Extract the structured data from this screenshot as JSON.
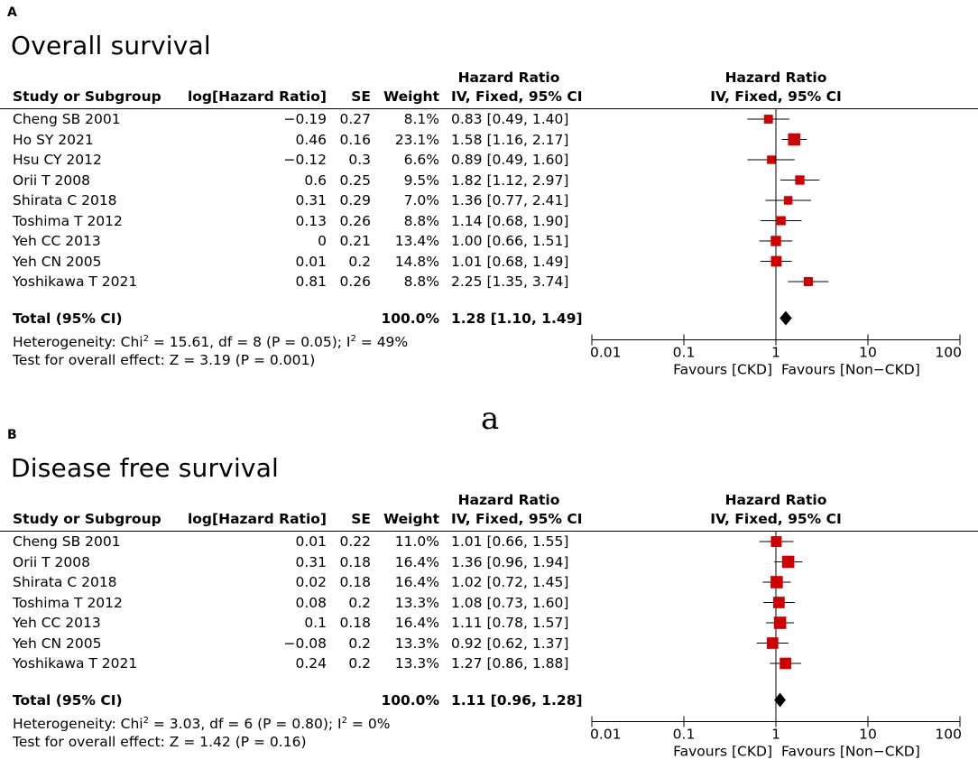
{
  "figure_separator": "a",
  "chart_data": [
    {
      "type": "forest",
      "panel_label": "A",
      "title": "Overall survival",
      "columns": {
        "study": "Study or Subgroup",
        "log_hr": "log[Hazard Ratio]",
        "se": "SE",
        "weight": "Weight",
        "hr_top": "Hazard Ratio",
        "hr_bottom": "IV, Fixed, 95% CI",
        "plot_top": "Hazard Ratio",
        "plot_bottom": "IV, Fixed, 95% CI"
      },
      "studies": [
        {
          "name": "Cheng SB 2001",
          "log_hr": "−0.19",
          "se": "0.27",
          "weight": "8.1%",
          "ci_text": "0.83 [0.49, 1.40]",
          "hr": 0.83,
          "lo": 0.49,
          "hi": 1.4,
          "w": 8.1
        },
        {
          "name": "Ho SY 2021",
          "log_hr": "0.46",
          "se": "0.16",
          "weight": "23.1%",
          "ci_text": "1.58 [1.16, 2.17]",
          "hr": 1.58,
          "lo": 1.16,
          "hi": 2.17,
          "w": 23.1
        },
        {
          "name": "Hsu CY 2012",
          "log_hr": "−0.12",
          "se": "0.3",
          "weight": "6.6%",
          "ci_text": "0.89 [0.49, 1.60]",
          "hr": 0.89,
          "lo": 0.49,
          "hi": 1.6,
          "w": 6.6
        },
        {
          "name": "Orii T 2008",
          "log_hr": "0.6",
          "se": "0.25",
          "weight": "9.5%",
          "ci_text": "1.82 [1.12, 2.97]",
          "hr": 1.82,
          "lo": 1.12,
          "hi": 2.97,
          "w": 9.5
        },
        {
          "name": "Shirata C 2018",
          "log_hr": "0.31",
          "se": "0.29",
          "weight": "7.0%",
          "ci_text": "1.36 [0.77, 2.41]",
          "hr": 1.36,
          "lo": 0.77,
          "hi": 2.41,
          "w": 7.0
        },
        {
          "name": "Toshima T 2012",
          "log_hr": "0.13",
          "se": "0.26",
          "weight": "8.8%",
          "ci_text": "1.14 [0.68, 1.90]",
          "hr": 1.14,
          "lo": 0.68,
          "hi": 1.9,
          "w": 8.8
        },
        {
          "name": "Yeh CC 2013",
          "log_hr": "0",
          "se": "0.21",
          "weight": "13.4%",
          "ci_text": "1.00 [0.66, 1.51]",
          "hr": 1.0,
          "lo": 0.66,
          "hi": 1.51,
          "w": 13.4
        },
        {
          "name": "Yeh CN 2005",
          "log_hr": "0.01",
          "se": "0.2",
          "weight": "14.8%",
          "ci_text": "1.01 [0.68, 1.49]",
          "hr": 1.01,
          "lo": 0.68,
          "hi": 1.49,
          "w": 14.8
        },
        {
          "name": "Yoshikawa T 2021",
          "log_hr": "0.81",
          "se": "0.26",
          "weight": "8.8%",
          "ci_text": "2.25 [1.35, 3.74]",
          "hr": 2.25,
          "lo": 1.35,
          "hi": 3.74,
          "w": 8.8
        }
      ],
      "total": {
        "label": "Total (95% CI)",
        "weight": "100.0%",
        "ci_text": "1.28 [1.10, 1.49]",
        "hr": 1.28,
        "lo": 1.1,
        "hi": 1.49
      },
      "heterogeneity": {
        "prefix": "Heterogeneity: Chi",
        "mid": " = 15.61, df = 8 (P = 0.05); I",
        "end": " = 49%"
      },
      "overall_effect": "Test for overall effect: Z = 3.19 (P = 0.001)",
      "x_axis": {
        "scale": "log",
        "range": [
          0.01,
          100
        ],
        "ticks": [
          0.01,
          0.1,
          1,
          10,
          100
        ],
        "tick_labels": [
          "0.01",
          "0.1",
          "1",
          "10",
          "100"
        ]
      },
      "favours_left": "Favours [CKD]",
      "favours_right": "Favours [Non−CKD]",
      "colors": {
        "square": "#cc0000",
        "diamond": "#000000"
      }
    },
    {
      "type": "forest",
      "panel_label": "B",
      "title": "Disease free survival",
      "columns": {
        "study": "Study or Subgroup",
        "log_hr": "log[Hazard Ratio]",
        "se": "SE",
        "weight": "Weight",
        "hr_top": "Hazard Ratio",
        "hr_bottom": "IV, Fixed, 95% CI",
        "plot_top": "Hazard Ratio",
        "plot_bottom": "IV, Fixed, 95% CI"
      },
      "studies": [
        {
          "name": "Cheng SB 2001",
          "log_hr": "0.01",
          "se": "0.22",
          "weight": "11.0%",
          "ci_text": "1.01 [0.66, 1.55]",
          "hr": 1.01,
          "lo": 0.66,
          "hi": 1.55,
          "w": 11.0
        },
        {
          "name": "Orii T 2008",
          "log_hr": "0.31",
          "se": "0.18",
          "weight": "16.4%",
          "ci_text": "1.36 [0.96, 1.94]",
          "hr": 1.36,
          "lo": 0.96,
          "hi": 1.94,
          "w": 16.4
        },
        {
          "name": "Shirata C 2018",
          "log_hr": "0.02",
          "se": "0.18",
          "weight": "16.4%",
          "ci_text": "1.02 [0.72, 1.45]",
          "hr": 1.02,
          "lo": 0.72,
          "hi": 1.45,
          "w": 16.4
        },
        {
          "name": "Toshima T 2012",
          "log_hr": "0.08",
          "se": "0.2",
          "weight": "13.3%",
          "ci_text": "1.08 [0.73, 1.60]",
          "hr": 1.08,
          "lo": 0.73,
          "hi": 1.6,
          "w": 13.3
        },
        {
          "name": "Yeh CC 2013",
          "log_hr": "0.1",
          "se": "0.18",
          "weight": "16.4%",
          "ci_text": "1.11 [0.78, 1.57]",
          "hr": 1.11,
          "lo": 0.78,
          "hi": 1.57,
          "w": 16.4
        },
        {
          "name": "Yeh CN 2005",
          "log_hr": "−0.08",
          "se": "0.2",
          "weight": "13.3%",
          "ci_text": "0.92 [0.62, 1.37]",
          "hr": 0.92,
          "lo": 0.62,
          "hi": 1.37,
          "w": 13.3
        },
        {
          "name": "Yoshikawa T 2021",
          "log_hr": "0.24",
          "se": "0.2",
          "weight": "13.3%",
          "ci_text": "1.27 [0.86, 1.88]",
          "hr": 1.27,
          "lo": 0.86,
          "hi": 1.88,
          "w": 13.3
        }
      ],
      "total": {
        "label": "Total (95% CI)",
        "weight": "100.0%",
        "ci_text": "1.11 [0.96, 1.28]",
        "hr": 1.11,
        "lo": 0.96,
        "hi": 1.28
      },
      "heterogeneity": {
        "prefix": "Heterogeneity: Chi",
        "mid": " = 3.03, df = 6 (P = 0.80); I",
        "end": " = 0%"
      },
      "overall_effect": "Test for overall effect: Z = 1.42 (P = 0.16)",
      "x_axis": {
        "scale": "log",
        "range": [
          0.01,
          100
        ],
        "ticks": [
          0.01,
          0.1,
          1,
          10,
          100
        ],
        "tick_labels": [
          "0.01",
          "0.1",
          "1",
          "10",
          "100"
        ]
      },
      "favours_left": "Favours [CKD]",
      "favours_right": "Favours [Non−CKD]",
      "colors": {
        "square": "#cc0000",
        "diamond": "#000000"
      }
    }
  ]
}
